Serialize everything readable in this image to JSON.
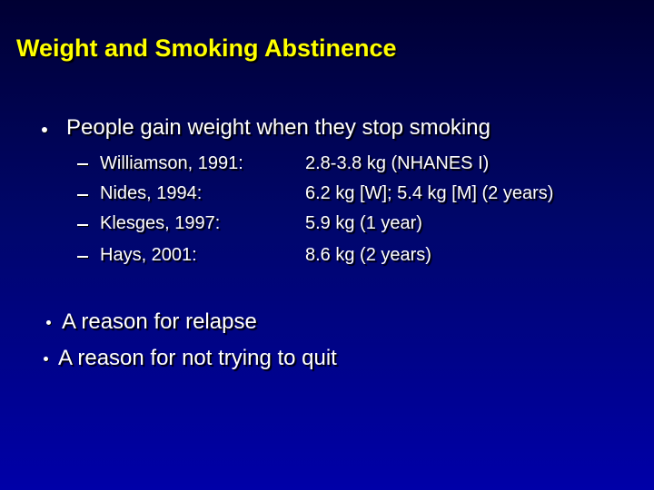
{
  "title": "Weight and Smoking Abstinence",
  "bullets": [
    {
      "text": "People gain weight when they stop smoking",
      "items": [
        {
          "source": "Williamson, 1991:",
          "value": "2.8-3.8 kg (NHANES I)"
        },
        {
          "source": "Nides, 1994:",
          "value": "6.2 kg [W]; 5.4 kg [M] (2 years)"
        },
        {
          "source": "Klesges, 1997:",
          "value": "5.9 kg (1 year)"
        },
        {
          "source": "Hays, 2001:",
          "value": "8.6 kg (2 years)"
        }
      ]
    },
    {
      "text": "A reason for relapse"
    },
    {
      "text": "A reason for not trying to quit"
    }
  ]
}
